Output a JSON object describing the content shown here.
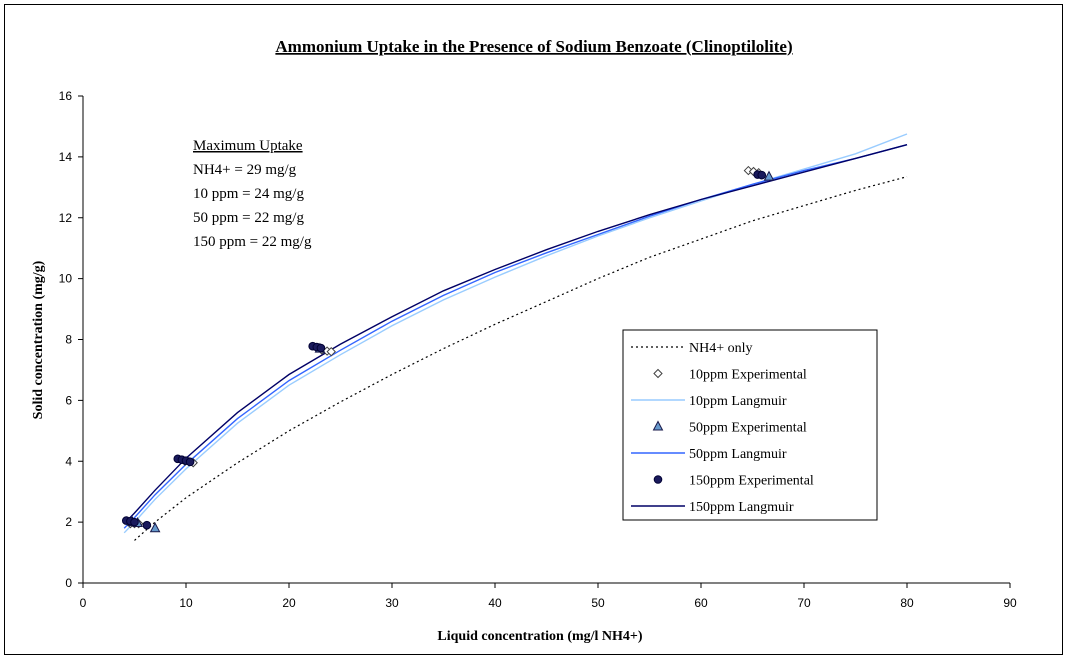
{
  "chart_data": {
    "type": "scatter",
    "title": "Ammonium Uptake in the Presence of Sodium Benzoate (Clinoptilolite)",
    "xlabel": "Liquid concentration (mg/l NH4+)",
    "ylabel": "Solid concentration (mg/g)",
    "xlim": [
      0,
      90
    ],
    "ylim": [
      0,
      16
    ],
    "xticks": [
      0,
      10,
      20,
      30,
      40,
      50,
      60,
      70,
      80,
      90
    ],
    "yticks": [
      0,
      2,
      4,
      6,
      8,
      10,
      12,
      14,
      16
    ],
    "grid": false,
    "legend_position": "right",
    "annotation": {
      "heading": "Maximum Uptake",
      "lines": [
        "NH4+ = 29 mg/g",
        "10 ppm = 24 mg/g",
        "50 ppm = 22 mg/g",
        "150 ppm = 22 mg/g"
      ]
    },
    "series": [
      {
        "name": "NH4+ only",
        "kind": "line",
        "style": "dotted",
        "color": "#000000",
        "x": [
          5,
          7,
          10,
          15,
          20,
          25,
          30,
          35,
          40,
          45,
          50,
          55,
          60,
          65,
          70,
          75,
          80
        ],
        "y": [
          1.4,
          2.0,
          2.8,
          3.95,
          5.0,
          5.95,
          6.85,
          7.7,
          8.5,
          9.25,
          10.0,
          10.7,
          11.3,
          11.9,
          12.4,
          12.9,
          13.35
        ]
      },
      {
        "name": "10ppm Experimental",
        "kind": "scatter",
        "marker": "diamond",
        "color": "#ffffff",
        "stroke": "#404040",
        "x": [
          4.6,
          5.0,
          5.4,
          9.9,
          10.3,
          10.7,
          23.2,
          23.7,
          24.1,
          64.6,
          65.1,
          65.6
        ],
        "y": [
          1.95,
          1.95,
          1.95,
          4.0,
          3.98,
          3.95,
          7.65,
          7.62,
          7.6,
          13.55,
          13.52,
          13.48
        ]
      },
      {
        "name": "10ppm Langmuir",
        "kind": "line",
        "style": "solid",
        "color": "#99ccff",
        "x": [
          4,
          5,
          7,
          10,
          15,
          20,
          25,
          30,
          35,
          40,
          45,
          50,
          55,
          60,
          65,
          70,
          75,
          80
        ],
        "y": [
          1.65,
          2.0,
          2.75,
          3.75,
          5.25,
          6.5,
          7.5,
          8.45,
          9.3,
          10.05,
          10.75,
          11.4,
          12.0,
          12.55,
          13.1,
          13.6,
          14.1,
          14.75
        ]
      },
      {
        "name": "50ppm Experimental",
        "kind": "scatter",
        "marker": "triangle",
        "color": "#6699cc",
        "stroke": "#1a1a4a",
        "x": [
          4.8,
          5.3,
          7.0,
          23.0,
          66.6
        ],
        "y": [
          2.0,
          1.97,
          1.8,
          7.7,
          13.35
        ]
      },
      {
        "name": "50ppm Langmuir",
        "kind": "line",
        "style": "solid",
        "color": "#3366ff",
        "x": [
          4,
          5,
          7,
          10,
          15,
          20,
          25,
          30,
          35,
          40,
          45,
          50,
          55,
          60,
          65,
          70,
          75,
          80
        ],
        "y": [
          1.8,
          2.15,
          2.9,
          3.9,
          5.4,
          6.65,
          7.65,
          8.6,
          9.45,
          10.2,
          10.85,
          11.45,
          12.05,
          12.6,
          13.1,
          13.55,
          13.95,
          14.4
        ]
      },
      {
        "name": "150ppm Experimental",
        "kind": "scatter",
        "marker": "circle",
        "color": "#1a1a5c",
        "stroke": "#000033",
        "x": [
          4.2,
          4.6,
          5.0,
          6.2,
          9.2,
          9.6,
          10.0,
          10.4,
          22.3,
          22.7,
          23.1,
          65.5,
          65.9
        ],
        "y": [
          2.05,
          2.03,
          2.0,
          1.9,
          4.08,
          4.05,
          4.02,
          3.98,
          7.78,
          7.75,
          7.72,
          13.42,
          13.4
        ]
      },
      {
        "name": "150ppm Langmuir",
        "kind": "line",
        "style": "solid",
        "color": "#000066",
        "x": [
          4,
          5,
          7,
          10,
          15,
          20,
          25,
          30,
          35,
          40,
          45,
          50,
          55,
          60,
          65,
          70,
          75,
          80
        ],
        "y": [
          1.95,
          2.3,
          3.05,
          4.1,
          5.6,
          6.85,
          7.85,
          8.75,
          9.6,
          10.3,
          10.95,
          11.55,
          12.1,
          12.6,
          13.05,
          13.5,
          13.95,
          14.4
        ]
      }
    ]
  }
}
